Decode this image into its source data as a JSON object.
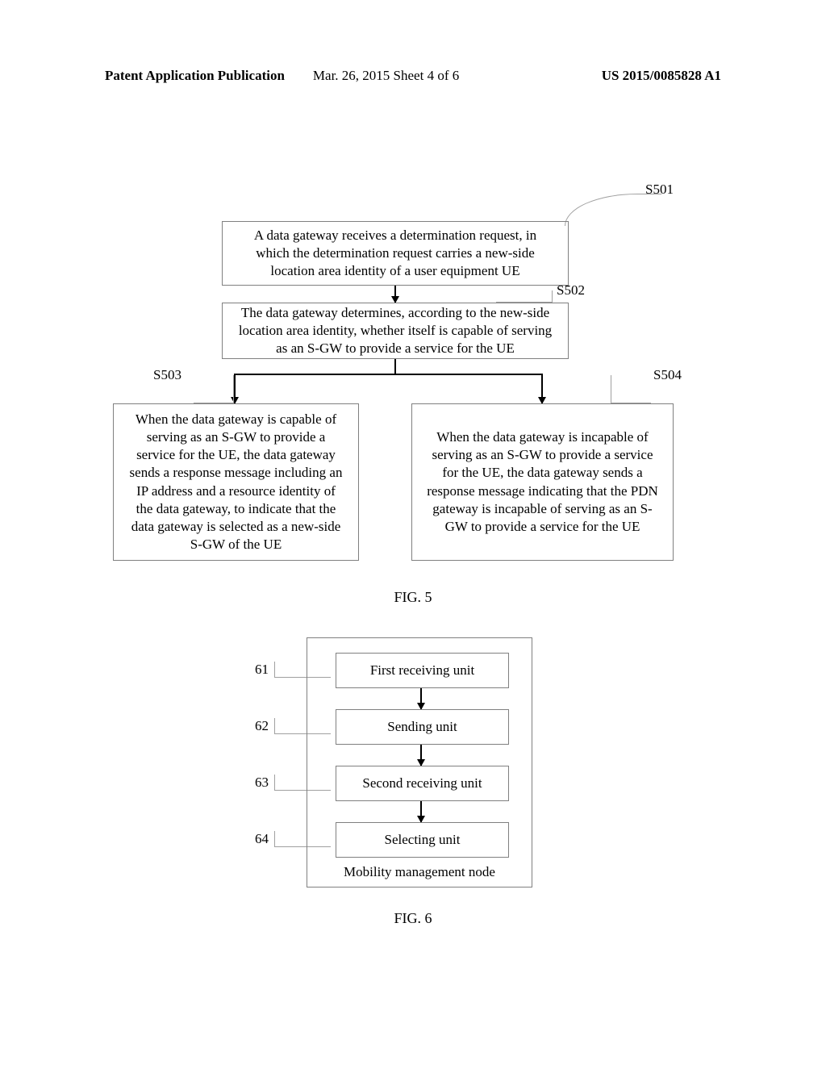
{
  "header": {
    "left": "Patent Application Publication",
    "center": "Mar. 26, 2015  Sheet 4 of 6",
    "right": "US 2015/0085828 A1"
  },
  "fig5": {
    "step501": {
      "label": "S501",
      "text": "A data gateway receives a determination request, in which the determination request carries a new-side location area identity of a user equipment UE"
    },
    "step502": {
      "label": "S502",
      "text": "The data gateway determines, according to the new-side location area identity, whether itself is capable of serving as an S-GW to provide a service for the UE"
    },
    "step503": {
      "label": "S503",
      "text": "When the data gateway is capable of serving as an S-GW to provide a service for the UE, the data gateway sends a response message including an IP address and a resource identity of the data gateway, to indicate that the data gateway is selected as a new-side S-GW of the UE"
    },
    "step504": {
      "label": "S504",
      "text": "When the data gateway is incapable of serving as an S-GW to provide a service for the UE, the data gateway sends a response message indicating that the PDN gateway is incapable of serving as an S-GW to provide a service for the UE"
    },
    "caption": "FIG. 5"
  },
  "fig6": {
    "unit61": {
      "num": "61",
      "label": "First receiving unit"
    },
    "unit62": {
      "num": "62",
      "label": "Sending unit"
    },
    "unit63": {
      "num": "63",
      "label": "Second receiving unit"
    },
    "unit64": {
      "num": "64",
      "label": "Selecting unit"
    },
    "container_label": "Mobility management node",
    "caption": "FIG. 6"
  },
  "colors": {
    "page_bg": "#ffffff",
    "box_border": "#808080",
    "connector": "#a0a0a0",
    "arrow": "#000000",
    "text": "#000000"
  },
  "typography": {
    "body_fontfamily": "Times New Roman",
    "body_fontsize_pt": 13,
    "caption_fontsize_pt": 14,
    "header_fontsize_pt": 13
  }
}
